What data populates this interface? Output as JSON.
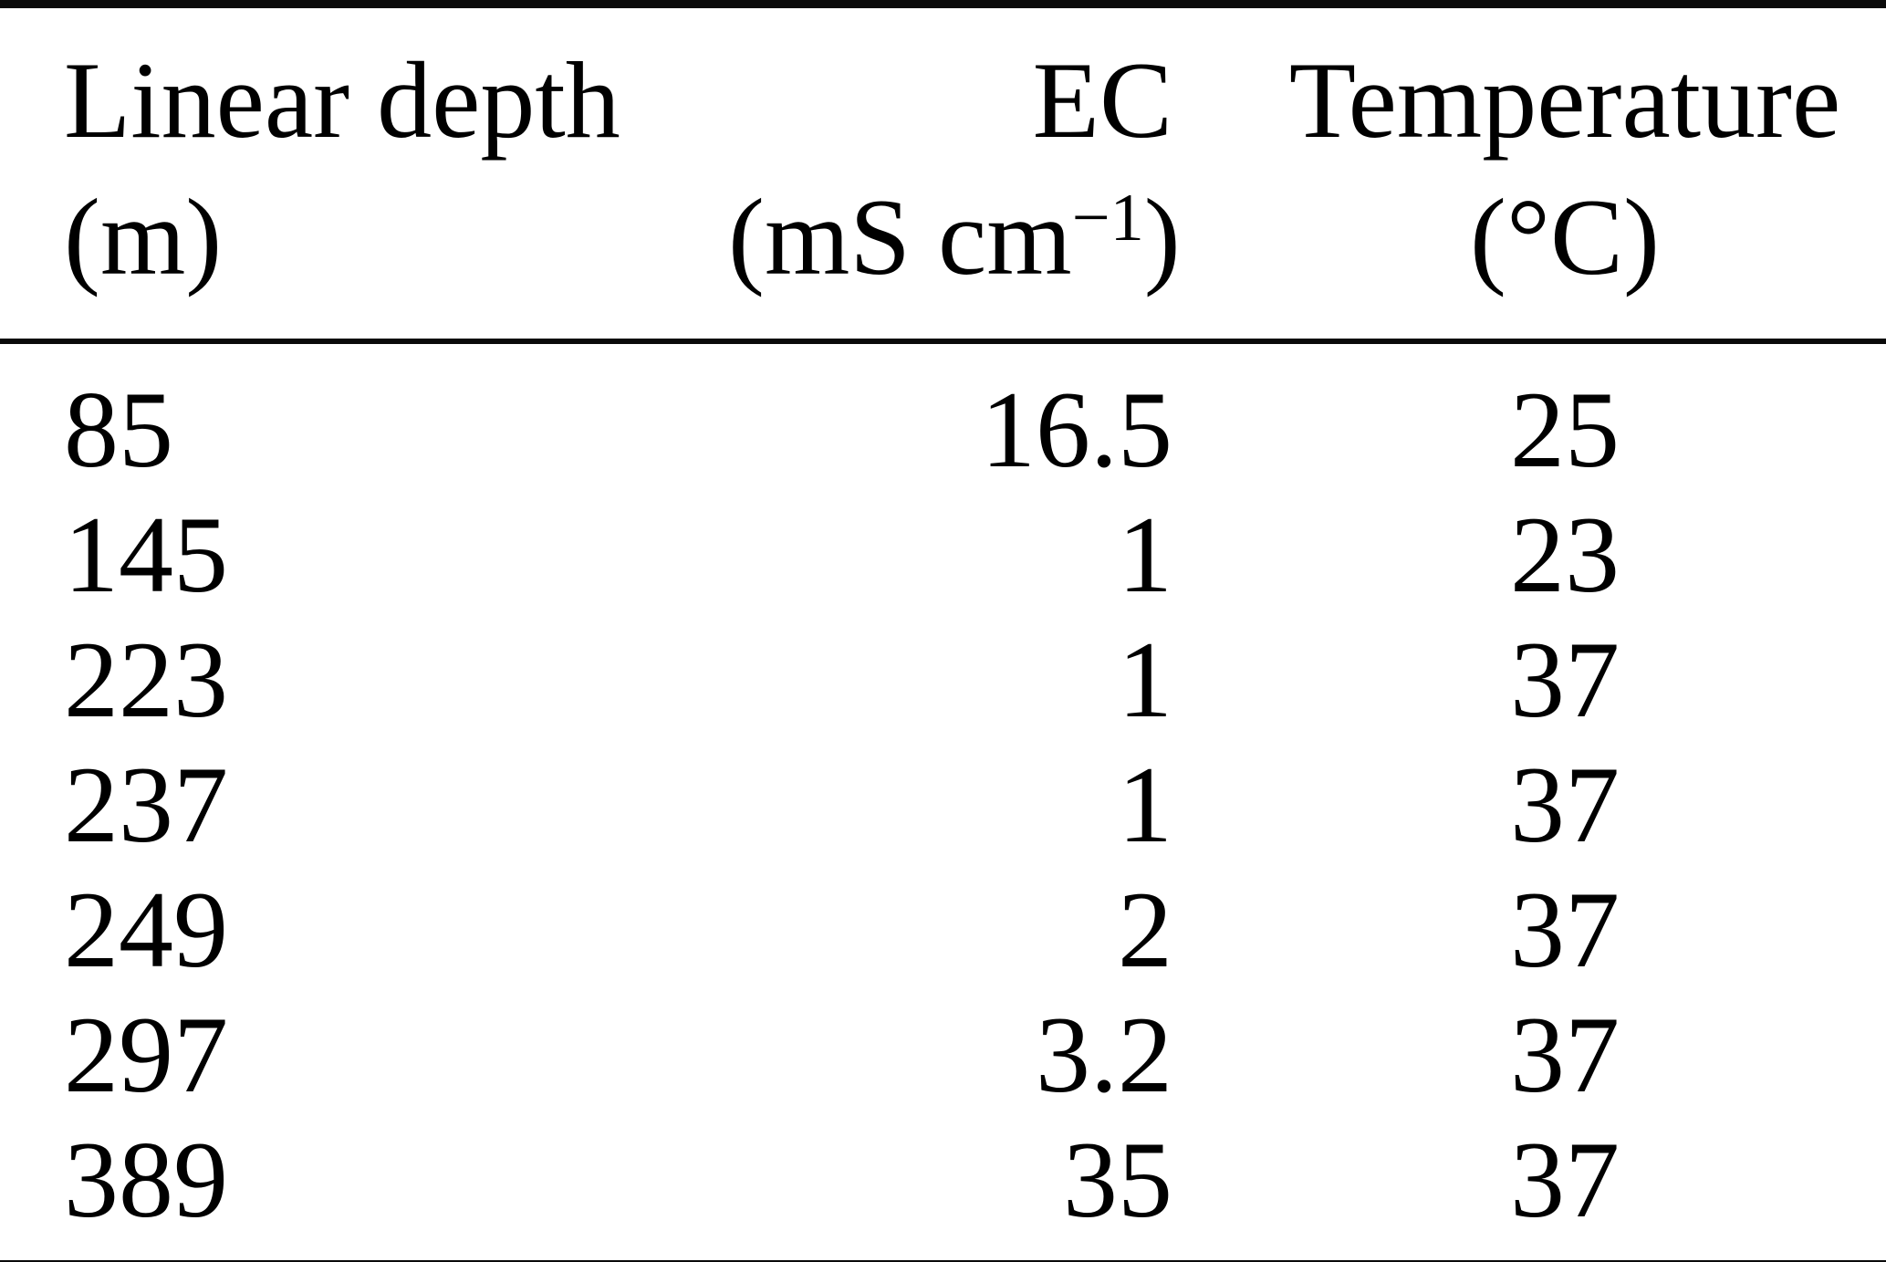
{
  "table": {
    "columns": {
      "depth": {
        "label": "Linear depth",
        "unit": "(m)"
      },
      "ec": {
        "label": "EC",
        "unit_base": "(mS cm",
        "unit_sup": "−1",
        "unit_close": ")"
      },
      "temp": {
        "label": "Temperature",
        "unit": "(°C)"
      }
    },
    "rows": [
      {
        "depth": "85",
        "ec": "16.5",
        "temp": "25"
      },
      {
        "depth": "145",
        "ec": "1",
        "temp": "23"
      },
      {
        "depth": "223",
        "ec": "1",
        "temp": "37"
      },
      {
        "depth": "237",
        "ec": "1",
        "temp": "37"
      },
      {
        "depth": "249",
        "ec": "2",
        "temp": "37"
      },
      {
        "depth": "297",
        "ec": "3.2",
        "temp": "37"
      },
      {
        "depth": "389",
        "ec": "35",
        "temp": "37"
      }
    ]
  },
  "chart_data": {
    "type": "table",
    "title": "",
    "columns": [
      "Linear depth (m)",
      "EC (mS cm^-1)",
      "Temperature (°C)"
    ],
    "rows": [
      [
        85,
        16.5,
        25
      ],
      [
        145,
        1,
        23
      ],
      [
        223,
        1,
        37
      ],
      [
        237,
        1,
        37
      ],
      [
        249,
        2,
        37
      ],
      [
        297,
        3.2,
        37
      ],
      [
        389,
        35,
        37
      ]
    ]
  },
  "colors": {
    "background": "#ffffff",
    "text": "#000000",
    "rule": "#0a0a0a"
  }
}
